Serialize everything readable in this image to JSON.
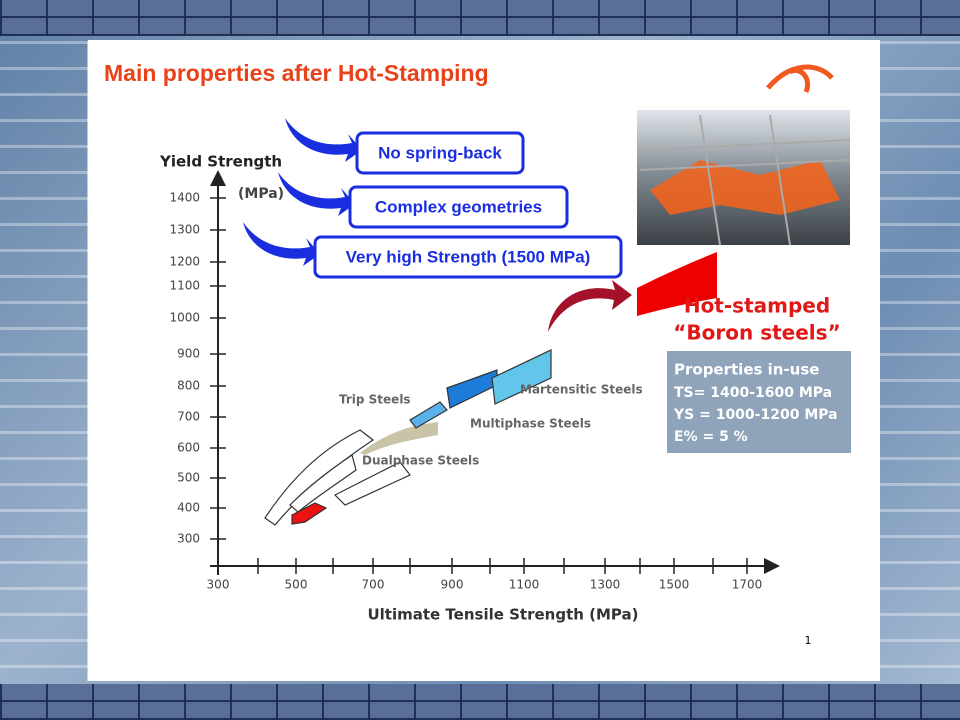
{
  "slide": {
    "title": "Main properties after Hot-Stamping",
    "callouts": [
      "No spring-back",
      "Complex geometries",
      "Very high Strength (1500 MPa)"
    ],
    "chart": {
      "y_axis_title": "Yield Strength",
      "y_axis_unit": "(MPa)",
      "x_axis_title": "Ultimate Tensile Strength (MPa)",
      "yticks": [
        1400,
        1300,
        1200,
        1100,
        1000,
        900,
        800,
        700,
        600,
        500,
        400,
        300
      ],
      "xticks": [
        300,
        500,
        700,
        900,
        1100,
        1300,
        1500,
        1700
      ],
      "region_labels": [
        "Trip Steels",
        "Martensitic Steels",
        "Multiphase Steels",
        "Dualphase Steels"
      ]
    },
    "highlight": [
      "Hot-stamped",
      "“Boron steels”"
    ],
    "properties": {
      "title": "Properties in-use",
      "lines": [
        "TS= 1400-1600 MPa",
        "YS = 1000-1200 MPa",
        "E% = 5 %"
      ]
    },
    "page_number": 1
  }
}
